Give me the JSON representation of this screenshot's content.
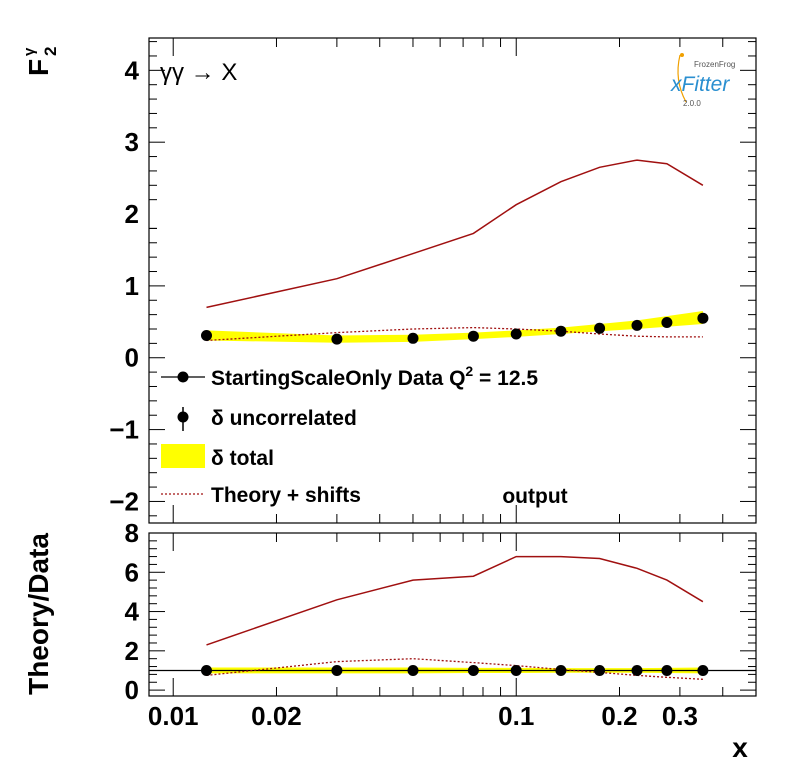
{
  "chart_data": [
    {
      "type": "line",
      "panel": "main",
      "ylabel": "F",
      "ylabel_sup": "γ",
      "ylabel_sub": "2",
      "process": "γγ → X",
      "xscale": "log",
      "xlim": [
        0.0085,
        0.5
      ],
      "ylim": [
        -2.3,
        4.45
      ],
      "yticks": [
        -2,
        -1,
        0,
        1,
        2,
        3,
        4
      ],
      "ytick_labels": [
        "−2",
        "−1",
        "0",
        "1",
        "2",
        "3",
        "4"
      ],
      "x": [
        0.0125,
        0.03,
        0.05,
        0.075,
        0.1,
        0.135,
        0.175,
        0.225,
        0.275,
        0.35
      ],
      "series": [
        {
          "name": "StartingScaleOnly",
          "style": "solid",
          "color": "#a01010",
          "values": [
            0.7,
            1.1,
            1.45,
            1.73,
            2.13,
            2.45,
            2.65,
            2.75,
            2.7,
            2.4
          ]
        },
        {
          "name": "Theory + shifts",
          "style": "dotted",
          "color": "#a01010",
          "values": [
            0.24,
            0.35,
            0.4,
            0.42,
            0.4,
            0.37,
            0.33,
            0.3,
            0.29,
            0.29
          ]
        },
        {
          "name": "Data",
          "style": "markers",
          "color": "#000000",
          "values": [
            0.31,
            0.26,
            0.27,
            0.3,
            0.33,
            0.37,
            0.41,
            0.45,
            0.49,
            0.55
          ]
        }
      ],
      "band": {
        "name": "δ total",
        "color": "#ffff00",
        "lower": [
          0.24,
          0.21,
          0.22,
          0.26,
          0.29,
          0.33,
          0.37,
          0.4,
          0.43,
          0.47
        ],
        "upper": [
          0.38,
          0.31,
          0.32,
          0.35,
          0.38,
          0.42,
          0.47,
          0.52,
          0.58,
          0.65
        ]
      },
      "legend": {
        "title": "StartingScaleOnly  Data Q",
        "title_sup": "2",
        "title_suffix": " = 12.5",
        "entries": [
          "δ uncorrelated",
          "δ total",
          "Theory + shifts"
        ],
        "placement": "bottom-left"
      },
      "annotation": "output",
      "logo": {
        "brand": "FrozenFrog",
        "name": "xFitter",
        "version": "2.0.0"
      }
    },
    {
      "type": "line",
      "panel": "ratio",
      "xlabel": "x",
      "ylabel": "Theory/Data",
      "xscale": "log",
      "xlim": [
        0.0085,
        0.5
      ],
      "ylim": [
        -0.3,
        8.0
      ],
      "xticks": [
        0.01,
        0.02,
        0.1,
        0.2,
        0.3
      ],
      "xtick_labels": [
        "0.01",
        "0.02",
        "0.1",
        "0.2",
        "0.3"
      ],
      "yticks": [
        0,
        2,
        4,
        6,
        8
      ],
      "ytick_labels": [
        "0",
        "2",
        "4",
        "6",
        "8"
      ],
      "reference_line": 1,
      "x": [
        0.0125,
        0.03,
        0.05,
        0.075,
        0.1,
        0.135,
        0.175,
        0.225,
        0.275,
        0.35
      ],
      "series": [
        {
          "name": "StartingScaleOnly",
          "style": "solid",
          "color": "#a01010",
          "values": [
            2.3,
            4.6,
            5.6,
            5.8,
            6.8,
            6.8,
            6.7,
            6.2,
            5.6,
            4.5
          ]
        },
        {
          "name": "Theory + shifts",
          "style": "dotted",
          "color": "#a01010",
          "values": [
            0.75,
            1.45,
            1.6,
            1.4,
            1.25,
            1.05,
            0.9,
            0.75,
            0.65,
            0.55
          ]
        },
        {
          "name": "Data",
          "style": "markers",
          "color": "#000000",
          "values": [
            1,
            1,
            1,
            1,
            1,
            1,
            1,
            1,
            1,
            1
          ]
        }
      ],
      "band": {
        "name": "δ total",
        "color": "#ffff00",
        "lower": [
          0.85,
          0.85,
          0.85,
          0.87,
          0.87,
          0.88,
          0.88,
          0.88,
          0.87,
          0.85
        ],
        "upper": [
          1.15,
          1.15,
          1.15,
          1.13,
          1.13,
          1.12,
          1.12,
          1.12,
          1.13,
          1.15
        ]
      }
    }
  ]
}
